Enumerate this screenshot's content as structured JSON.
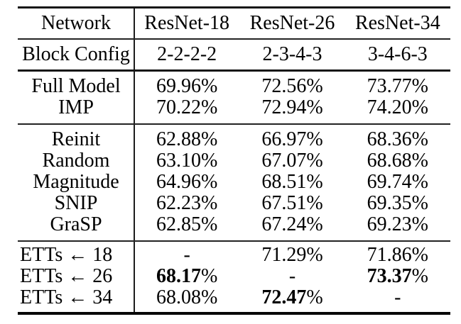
{
  "colors": {
    "background": "#ffffff",
    "text": "#000000",
    "rule": "#141414"
  },
  "table": {
    "header": {
      "row_label": "Network",
      "columns": [
        "ResNet-18",
        "ResNet-26",
        "ResNet-34"
      ]
    },
    "config": {
      "row_label": "Block Config",
      "values": [
        "2-2-2-2",
        "2-3-4-3",
        "3-4-6-3"
      ]
    },
    "sections": [
      {
        "name": "baseline",
        "rows": [
          {
            "label": "Full Model",
            "cells": [
              {
                "value": "69.96",
                "suffix": "%",
                "bold": false
              },
              {
                "value": "72.56",
                "suffix": "%",
                "bold": false
              },
              {
                "value": "73.77",
                "suffix": "%",
                "bold": false
              }
            ]
          },
          {
            "label": "IMP",
            "cells": [
              {
                "value": "70.22",
                "suffix": "%",
                "bold": false
              },
              {
                "value": "72.94",
                "suffix": "%",
                "bold": false
              },
              {
                "value": "74.20",
                "suffix": "%",
                "bold": false
              }
            ]
          }
        ]
      },
      {
        "name": "pruning-methods",
        "rows": [
          {
            "label": "Reinit",
            "cells": [
              {
                "value": "62.88",
                "suffix": "%",
                "bold": false
              },
              {
                "value": "66.97",
                "suffix": "%",
                "bold": false
              },
              {
                "value": "68.36",
                "suffix": "%",
                "bold": false
              }
            ]
          },
          {
            "label": "Random",
            "cells": [
              {
                "value": "63.10",
                "suffix": "%",
                "bold": false
              },
              {
                "value": "67.07",
                "suffix": "%",
                "bold": false
              },
              {
                "value": "68.68",
                "suffix": "%",
                "bold": false
              }
            ]
          },
          {
            "label": "Magnitude",
            "cells": [
              {
                "value": "64.96",
                "suffix": "%",
                "bold": false
              },
              {
                "value": "68.51",
                "suffix": "%",
                "bold": false
              },
              {
                "value": "69.74",
                "suffix": "%",
                "bold": false
              }
            ]
          },
          {
            "label": "SNIP",
            "cells": [
              {
                "value": "62.23",
                "suffix": "%",
                "bold": false
              },
              {
                "value": "67.51",
                "suffix": "%",
                "bold": false
              },
              {
                "value": "69.35",
                "suffix": "%",
                "bold": false
              }
            ]
          },
          {
            "label": "GraSP",
            "cells": [
              {
                "value": "62.85",
                "suffix": "%",
                "bold": false
              },
              {
                "value": "67.24",
                "suffix": "%",
                "bold": false
              },
              {
                "value": "69.23",
                "suffix": "%",
                "bold": false
              }
            ]
          }
        ]
      },
      {
        "name": "etts",
        "label_align": "left",
        "rows": [
          {
            "label": "ETTs ← 18",
            "cells": [
              {
                "value": "-",
                "suffix": "",
                "bold": false
              },
              {
                "value": "71.29",
                "suffix": "%",
                "bold": false
              },
              {
                "value": "71.86",
                "suffix": "%",
                "bold": false
              }
            ]
          },
          {
            "label": "ETTs ← 26",
            "cells": [
              {
                "value": "68.17",
                "suffix": "%",
                "bold": true
              },
              {
                "value": "-",
                "suffix": "",
                "bold": false
              },
              {
                "value": "73.37",
                "suffix": "%",
                "bold": true
              }
            ]
          },
          {
            "label": "ETTs ← 34",
            "cells": [
              {
                "value": "68.08",
                "suffix": "%",
                "bold": false
              },
              {
                "value": "72.47",
                "suffix": "%",
                "bold": true
              },
              {
                "value": "-",
                "suffix": "",
                "bold": false
              }
            ]
          }
        ]
      }
    ]
  }
}
